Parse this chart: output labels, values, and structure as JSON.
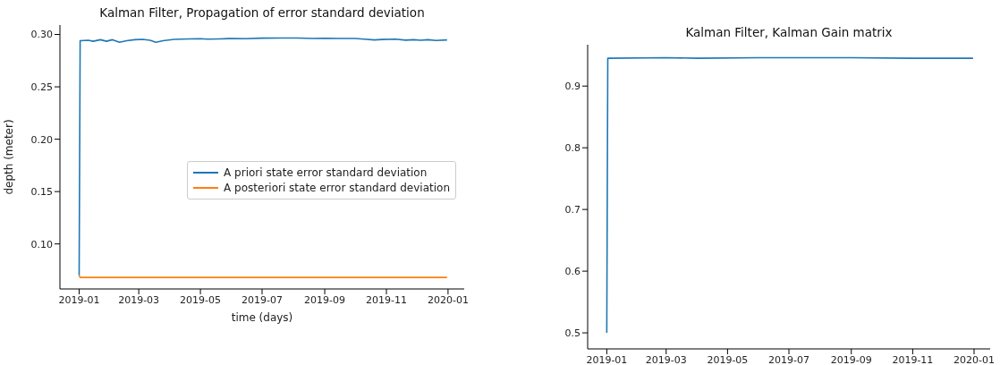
{
  "chart_data": [
    {
      "type": "line",
      "title": "Kalman Filter, Propagation of error standard deviation",
      "xlabel": "time (days)",
      "ylabel": "depth (meter)",
      "xlim": [
        "2018-12-13",
        "2020-01-17"
      ],
      "xticks": [
        {
          "value": "2019-01-01",
          "label": "2019-01"
        },
        {
          "value": "2019-03-01",
          "label": "2019-03"
        },
        {
          "value": "2019-05-01",
          "label": "2019-05"
        },
        {
          "value": "2019-07-01",
          "label": "2019-07"
        },
        {
          "value": "2019-09-01",
          "label": "2019-09"
        },
        {
          "value": "2019-11-01",
          "label": "2019-11"
        },
        {
          "value": "2020-01-01",
          "label": "2020-01"
        }
      ],
      "ylim": [
        0.057,
        0.309
      ],
      "yticks": [
        {
          "value": 0.1,
          "label": "0.10"
        },
        {
          "value": 0.15,
          "label": "0.15"
        },
        {
          "value": 0.2,
          "label": "0.20"
        },
        {
          "value": 0.25,
          "label": "0.25"
        },
        {
          "value": 0.3,
          "label": "0.30"
        }
      ],
      "grid": false,
      "legend": "right",
      "marker": "none",
      "line_style": "solid",
      "series": [
        {
          "name": "A priori state error standard deviation",
          "color": "#1f77b4",
          "x": [
            "2019-01-01",
            "2019-01-02",
            "2019-01-10",
            "2019-01-15",
            "2019-01-22",
            "2019-01-28",
            "2019-02-03",
            "2019-02-10",
            "2019-02-17",
            "2019-02-25",
            "2019-03-05",
            "2019-03-12",
            "2019-03-18",
            "2019-03-25",
            "2019-04-05",
            "2019-04-20",
            "2019-05-01",
            "2019-05-08",
            "2019-05-20",
            "2019-06-01",
            "2019-06-15",
            "2019-07-01",
            "2019-07-20",
            "2019-08-05",
            "2019-08-20",
            "2019-09-01",
            "2019-09-15",
            "2019-10-01",
            "2019-10-10",
            "2019-10-20",
            "2019-10-28",
            "2019-11-10",
            "2019-11-20",
            "2019-11-28",
            "2019-12-05",
            "2019-12-12",
            "2019-12-20",
            "2019-12-31"
          ],
          "values": [
            0.07,
            0.294,
            0.2945,
            0.2935,
            0.295,
            0.2935,
            0.295,
            0.2925,
            0.294,
            0.295,
            0.2953,
            0.2945,
            0.2925,
            0.294,
            0.2953,
            0.2957,
            0.296,
            0.2955,
            0.2958,
            0.2962,
            0.296,
            0.2965,
            0.2966,
            0.2966,
            0.2962,
            0.2964,
            0.2962,
            0.2962,
            0.2955,
            0.2948,
            0.2952,
            0.2955,
            0.2946,
            0.295,
            0.2945,
            0.295,
            0.2943,
            0.2948
          ]
        },
        {
          "name": "A posteriori state error standard deviation",
          "color": "#ff7f0e",
          "x": [
            "2019-01-01",
            "2019-01-02",
            "2019-12-31"
          ],
          "values": [
            0.07,
            0.068,
            0.068
          ]
        }
      ]
    },
    {
      "type": "line",
      "title": "Kalman Filter, Kalman Gain matrix",
      "xlim": [
        "2018-12-13",
        "2020-01-17"
      ],
      "xticks": [
        {
          "value": "2019-01-01",
          "label": "2019-01"
        },
        {
          "value": "2019-03-01",
          "label": "2019-03"
        },
        {
          "value": "2019-05-01",
          "label": "2019-05"
        },
        {
          "value": "2019-07-01",
          "label": "2019-07"
        },
        {
          "value": "2019-09-01",
          "label": "2019-09"
        },
        {
          "value": "2019-11-01",
          "label": "2019-11"
        },
        {
          "value": "2020-01-01",
          "label": "2020-01"
        }
      ],
      "ylim": [
        0.474,
        0.967
      ],
      "yticks": [
        0.5,
        0.6,
        0.7,
        0.8,
        0.9
      ],
      "grid": false,
      "marker": "none",
      "line_style": "solid",
      "series": [
        {
          "color": "#1f77b4",
          "x": [
            "2019-01-01",
            "2019-01-02",
            "2019-03-01",
            "2019-04-01",
            "2019-06-01",
            "2019-09-01",
            "2019-11-01",
            "2019-12-31"
          ],
          "values": [
            0.5,
            0.945,
            0.946,
            0.945,
            0.946,
            0.946,
            0.945,
            0.945
          ]
        }
      ]
    }
  ]
}
